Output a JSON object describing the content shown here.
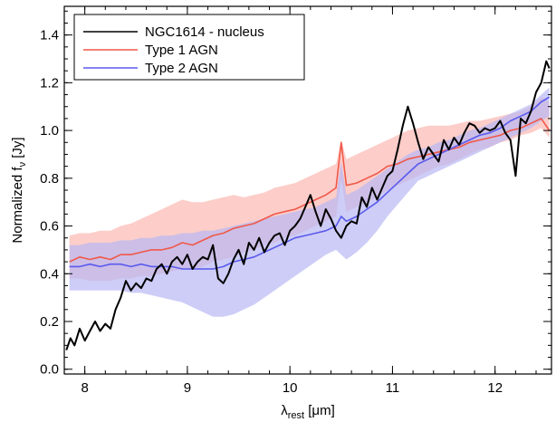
{
  "chart_data": {
    "type": "line",
    "xlabel": {
      "main": "λ",
      "sub": "rest",
      "unit": " [μm]"
    },
    "ylabel": {
      "main": "Normalized f",
      "sub": "ν",
      "unit": " [Jy]"
    },
    "xlim": [
      7.8,
      12.55
    ],
    "ylim": [
      -0.02,
      1.52
    ],
    "xticks": [
      8,
      9,
      10,
      11,
      12
    ],
    "yticks": [
      0.0,
      0.2,
      0.4,
      0.6,
      0.8,
      1.0,
      1.2,
      1.4
    ],
    "ytick_labels": [
      "0.0",
      "0.2",
      "0.4",
      "0.6",
      "0.8",
      "1.0",
      "1.2",
      "1.4"
    ],
    "xminor_step": 0.2,
    "yminor_step": 0.05,
    "grid": false,
    "legend_position": "top-left",
    "series": [
      {
        "name": "NGC1614 - nucleus",
        "color": "#000000",
        "x": [
          7.82,
          7.86,
          7.9,
          7.95,
          8.0,
          8.05,
          8.1,
          8.15,
          8.2,
          8.25,
          8.3,
          8.35,
          8.4,
          8.45,
          8.5,
          8.55,
          8.6,
          8.65,
          8.7,
          8.75,
          8.8,
          8.85,
          8.9,
          8.95,
          9.0,
          9.05,
          9.1,
          9.15,
          9.2,
          9.25,
          9.3,
          9.35,
          9.4,
          9.45,
          9.5,
          9.55,
          9.6,
          9.65,
          9.7,
          9.75,
          9.8,
          9.85,
          9.9,
          9.95,
          10.0,
          10.05,
          10.1,
          10.15,
          10.2,
          10.25,
          10.3,
          10.35,
          10.4,
          10.45,
          10.5,
          10.55,
          10.6,
          10.65,
          10.7,
          10.75,
          10.8,
          10.85,
          10.9,
          10.95,
          11.0,
          11.05,
          11.1,
          11.15,
          11.2,
          11.25,
          11.3,
          11.35,
          11.4,
          11.45,
          11.5,
          11.55,
          11.6,
          11.65,
          11.7,
          11.75,
          11.8,
          11.85,
          11.9,
          11.95,
          12.0,
          12.05,
          12.1,
          12.15,
          12.2,
          12.25,
          12.3,
          12.35,
          12.4,
          12.45,
          12.5,
          12.53
        ],
        "y": [
          0.08,
          0.13,
          0.1,
          0.17,
          0.12,
          0.16,
          0.2,
          0.16,
          0.19,
          0.17,
          0.25,
          0.3,
          0.37,
          0.33,
          0.36,
          0.34,
          0.38,
          0.37,
          0.42,
          0.44,
          0.4,
          0.45,
          0.47,
          0.44,
          0.48,
          0.42,
          0.45,
          0.47,
          0.46,
          0.52,
          0.38,
          0.36,
          0.4,
          0.46,
          0.5,
          0.44,
          0.53,
          0.5,
          0.55,
          0.49,
          0.53,
          0.56,
          0.57,
          0.52,
          0.58,
          0.6,
          0.63,
          0.68,
          0.73,
          0.66,
          0.6,
          0.67,
          0.63,
          0.58,
          0.55,
          0.6,
          0.62,
          0.61,
          0.72,
          0.68,
          0.76,
          0.71,
          0.76,
          0.81,
          0.83,
          0.92,
          1.02,
          1.1,
          1.03,
          0.95,
          0.88,
          0.93,
          0.9,
          0.87,
          0.96,
          0.92,
          0.97,
          0.94,
          0.99,
          1.03,
          1.02,
          0.99,
          1.01,
          1.0,
          1.01,
          1.04,
          0.99,
          0.96,
          0.81,
          1.05,
          1.03,
          1.08,
          1.16,
          1.2,
          1.29,
          1.26
        ]
      },
      {
        "name": "Type 1 AGN",
        "color": "#f05848",
        "band_color": "#fbb8b2",
        "x": [
          7.85,
          7.95,
          8.05,
          8.15,
          8.25,
          8.35,
          8.45,
          8.55,
          8.65,
          8.75,
          8.85,
          8.95,
          9.05,
          9.15,
          9.25,
          9.35,
          9.45,
          9.55,
          9.65,
          9.75,
          9.85,
          9.95,
          10.05,
          10.15,
          10.25,
          10.35,
          10.45,
          10.5,
          10.55,
          10.65,
          10.75,
          10.85,
          10.95,
          11.05,
          11.15,
          11.25,
          11.35,
          11.45,
          11.55,
          11.65,
          11.75,
          11.85,
          11.95,
          12.05,
          12.15,
          12.25,
          12.35,
          12.45,
          12.53
        ],
        "y": [
          0.45,
          0.47,
          0.46,
          0.47,
          0.46,
          0.48,
          0.48,
          0.49,
          0.5,
          0.5,
          0.51,
          0.53,
          0.52,
          0.54,
          0.56,
          0.57,
          0.59,
          0.6,
          0.61,
          0.63,
          0.65,
          0.66,
          0.67,
          0.69,
          0.71,
          0.73,
          0.76,
          0.95,
          0.77,
          0.78,
          0.8,
          0.82,
          0.85,
          0.86,
          0.88,
          0.89,
          0.9,
          0.91,
          0.92,
          0.93,
          0.95,
          0.96,
          0.97,
          0.98,
          1.0,
          1.01,
          1.03,
          1.05,
          1.0
        ],
        "band_lower": [
          0.38,
          0.38,
          0.37,
          0.37,
          0.37,
          0.38,
          0.38,
          0.39,
          0.39,
          0.4,
          0.41,
          0.42,
          0.42,
          0.43,
          0.45,
          0.46,
          0.47,
          0.49,
          0.5,
          0.52,
          0.53,
          0.55,
          0.56,
          0.58,
          0.6,
          0.62,
          0.64,
          0.8,
          0.66,
          0.68,
          0.7,
          0.72,
          0.75,
          0.77,
          0.79,
          0.81,
          0.83,
          0.85,
          0.86,
          0.88,
          0.9,
          0.92,
          0.93,
          0.95,
          0.96,
          0.98,
          0.99,
          1.01,
          0.97
        ],
        "band_upper": [
          0.56,
          0.57,
          0.57,
          0.58,
          0.58,
          0.6,
          0.61,
          0.63,
          0.65,
          0.67,
          0.69,
          0.71,
          0.7,
          0.7,
          0.71,
          0.72,
          0.73,
          0.72,
          0.73,
          0.74,
          0.76,
          0.77,
          0.78,
          0.8,
          0.82,
          0.84,
          0.86,
          0.96,
          0.88,
          0.9,
          0.92,
          0.94,
          0.96,
          0.98,
          1.0,
          1.01,
          1.02,
          1.02,
          1.02,
          1.03,
          1.04,
          1.04,
          1.05,
          1.06,
          1.07,
          1.08,
          1.1,
          1.14,
          1.12
        ]
      },
      {
        "name": "Type 2 AGN",
        "color": "#5a5aee",
        "band_color": "#b8b8f4",
        "x": [
          7.85,
          7.95,
          8.05,
          8.15,
          8.25,
          8.35,
          8.45,
          8.55,
          8.65,
          8.75,
          8.85,
          8.95,
          9.05,
          9.15,
          9.25,
          9.35,
          9.45,
          9.55,
          9.65,
          9.75,
          9.85,
          9.95,
          10.05,
          10.15,
          10.25,
          10.35,
          10.45,
          10.5,
          10.55,
          10.65,
          10.75,
          10.85,
          10.95,
          11.05,
          11.15,
          11.25,
          11.35,
          11.45,
          11.55,
          11.65,
          11.75,
          11.85,
          11.95,
          12.05,
          12.15,
          12.25,
          12.35,
          12.45,
          12.53
        ],
        "y": [
          0.43,
          0.43,
          0.44,
          0.43,
          0.44,
          0.44,
          0.43,
          0.44,
          0.43,
          0.43,
          0.43,
          0.42,
          0.42,
          0.42,
          0.42,
          0.43,
          0.45,
          0.46,
          0.47,
          0.49,
          0.51,
          0.53,
          0.55,
          0.56,
          0.57,
          0.58,
          0.6,
          0.64,
          0.62,
          0.64,
          0.67,
          0.7,
          0.74,
          0.78,
          0.82,
          0.86,
          0.88,
          0.9,
          0.92,
          0.94,
          0.96,
          0.98,
          0.99,
          1.01,
          1.04,
          1.06,
          1.08,
          1.12,
          1.14
        ],
        "band_lower": [
          0.33,
          0.33,
          0.33,
          0.33,
          0.33,
          0.33,
          0.32,
          0.32,
          0.31,
          0.3,
          0.29,
          0.28,
          0.26,
          0.24,
          0.22,
          0.22,
          0.23,
          0.25,
          0.27,
          0.3,
          0.33,
          0.36,
          0.39,
          0.42,
          0.45,
          0.48,
          0.5,
          0.48,
          0.46,
          0.49,
          0.53,
          0.58,
          0.64,
          0.69,
          0.74,
          0.79,
          0.81,
          0.83,
          0.85,
          0.87,
          0.89,
          0.91,
          0.93,
          0.95,
          0.97,
          0.99,
          1.01,
          1.04,
          1.06
        ],
        "band_upper": [
          0.52,
          0.52,
          0.53,
          0.53,
          0.53,
          0.54,
          0.54,
          0.55,
          0.55,
          0.56,
          0.56,
          0.57,
          0.57,
          0.58,
          0.58,
          0.59,
          0.6,
          0.61,
          0.62,
          0.63,
          0.64,
          0.65,
          0.66,
          0.67,
          0.68,
          0.7,
          0.72,
          0.87,
          0.73,
          0.75,
          0.78,
          0.81,
          0.84,
          0.87,
          0.9,
          0.92,
          0.93,
          0.95,
          0.96,
          0.98,
          1.0,
          1.01,
          1.03,
          1.05,
          1.07,
          1.09,
          1.11,
          1.15,
          1.18
        ]
      }
    ]
  }
}
